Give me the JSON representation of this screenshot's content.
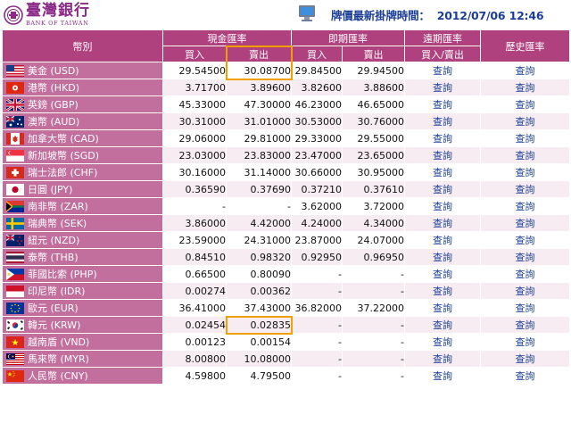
{
  "header": {
    "logo_cn": "臺灣銀行",
    "logo_en": "BANK OF TAIWAN",
    "quote_label": "牌價最新掛牌時間：",
    "quote_time": "2012/07/06 12:46"
  },
  "columns": {
    "currency": "幣別",
    "cash": "現金匯率",
    "spot": "即期匯率",
    "forward": "遠期匯率",
    "history": "歷史匯率",
    "buy": "買入",
    "sell": "賣出",
    "buy_sell": "買入/賣出"
  },
  "link_label": "查詢",
  "rows": [
    {
      "flag": "US",
      "name": "美金 (USD)",
      "cash_buy": "29.54500",
      "cash_sell": "30.08700",
      "spot_buy": "29.84500",
      "spot_sell": "29.94500"
    },
    {
      "flag": "HK",
      "name": "港幣 (HKD)",
      "cash_buy": "3.71700",
      "cash_sell": "3.89600",
      "spot_buy": "3.82600",
      "spot_sell": "3.88600"
    },
    {
      "flag": "GB",
      "name": "英鎊 (GBP)",
      "cash_buy": "45.33000",
      "cash_sell": "47.30000",
      "spot_buy": "46.23000",
      "spot_sell": "46.65000"
    },
    {
      "flag": "AU",
      "name": "澳幣 (AUD)",
      "cash_buy": "30.31000",
      "cash_sell": "31.01000",
      "spot_buy": "30.53000",
      "spot_sell": "30.76000"
    },
    {
      "flag": "CA",
      "name": "加拿大幣 (CAD)",
      "cash_buy": "29.06000",
      "cash_sell": "29.81000",
      "spot_buy": "29.33000",
      "spot_sell": "29.55000"
    },
    {
      "flag": "SG",
      "name": "新加坡幣 (SGD)",
      "cash_buy": "23.03000",
      "cash_sell": "23.83000",
      "spot_buy": "23.47000",
      "spot_sell": "23.65000"
    },
    {
      "flag": "CH",
      "name": "瑞士法郎 (CHF)",
      "cash_buy": "30.16000",
      "cash_sell": "31.14000",
      "spot_buy": "30.66000",
      "spot_sell": "30.95000"
    },
    {
      "flag": "JP",
      "name": "日圓 (JPY)",
      "cash_buy": "0.36590",
      "cash_sell": "0.37690",
      "spot_buy": "0.37210",
      "spot_sell": "0.37610"
    },
    {
      "flag": "ZA",
      "name": "南非幣 (ZAR)",
      "cash_buy": "-",
      "cash_sell": "-",
      "spot_buy": "3.62000",
      "spot_sell": "3.72000"
    },
    {
      "flag": "SE",
      "name": "瑞典幣 (SEK)",
      "cash_buy": "3.86000",
      "cash_sell": "4.42000",
      "spot_buy": "4.24000",
      "spot_sell": "4.34000"
    },
    {
      "flag": "NZ",
      "name": "紐元 (NZD)",
      "cash_buy": "23.59000",
      "cash_sell": "24.31000",
      "spot_buy": "23.87000",
      "spot_sell": "24.07000"
    },
    {
      "flag": "TH",
      "name": "泰幣 (THB)",
      "cash_buy": "0.84510",
      "cash_sell": "0.98320",
      "spot_buy": "0.92950",
      "spot_sell": "0.96950"
    },
    {
      "flag": "PH",
      "name": "菲國比索 (PHP)",
      "cash_buy": "0.66500",
      "cash_sell": "0.80090",
      "spot_buy": "-",
      "spot_sell": "-"
    },
    {
      "flag": "ID",
      "name": "印尼幣 (IDR)",
      "cash_buy": "0.00274",
      "cash_sell": "0.00362",
      "spot_buy": "-",
      "spot_sell": "-"
    },
    {
      "flag": "EU",
      "name": "歐元 (EUR)",
      "cash_buy": "36.41000",
      "cash_sell": "37.43000",
      "spot_buy": "36.82000",
      "spot_sell": "37.22000"
    },
    {
      "flag": "KR",
      "name": "韓元 (KRW)",
      "cash_buy": "0.02454",
      "cash_sell": "0.02835",
      "spot_buy": "-",
      "spot_sell": "-"
    },
    {
      "flag": "VN",
      "name": "越南盾 (VND)",
      "cash_buy": "0.00123",
      "cash_sell": "0.00154",
      "spot_buy": "-",
      "spot_sell": "-"
    },
    {
      "flag": "MY",
      "name": "馬來幣 (MYR)",
      "cash_buy": "8.00800",
      "cash_sell": "10.08000",
      "spot_buy": "-",
      "spot_sell": "-"
    },
    {
      "flag": "CN",
      "name": "人民幣 (CNY)",
      "cash_buy": "4.59800",
      "cash_sell": "4.79500",
      "spot_buy": "-",
      "spot_sell": "-"
    }
  ],
  "colors": {
    "header_bg": "#b0417f",
    "currency_cell_bg": "#c26f9e",
    "link": "#1c3f95",
    "highlight": "#f0a000"
  }
}
